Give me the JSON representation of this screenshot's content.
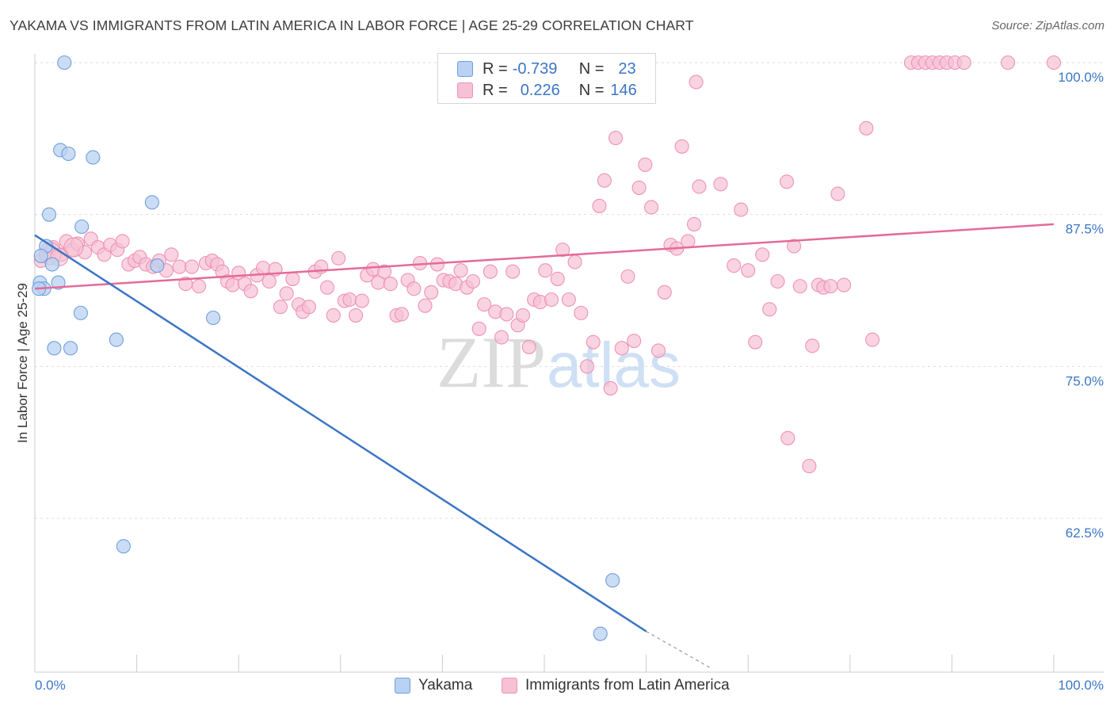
{
  "title": "YAKAMA VS IMMIGRANTS FROM LATIN AMERICA IN LABOR FORCE | AGE 25-29 CORRELATION CHART",
  "source": "Source: ZipAtlas.com",
  "watermark": {
    "zip": "ZIP",
    "atlas": "atlas"
  },
  "colors": {
    "blue": "#3b76c6",
    "blue_fill": "#b9d1f2",
    "blue_stroke": "#6f9fdc",
    "pink": "#e46b98",
    "pink_fill": "#f6c1d4",
    "pink_stroke": "#ee93b5"
  },
  "legend": {
    "rows": [
      {
        "r_label": "R =",
        "r_value": "-0.739",
        "n_label": "N =",
        "n_value": "23"
      },
      {
        "r_label": "R =",
        "r_value": "0.226",
        "n_label": "N =",
        "n_value": "146"
      }
    ]
  },
  "chart_data": {
    "type": "scatter",
    "title": "YAKAMA VS IMMIGRANTS FROM LATIN AMERICA IN LABOR FORCE | AGE 25-29 CORRELATION CHART",
    "xlabel": "",
    "ylabel": "In Labor Force | Age 25-29",
    "xlim": [
      0,
      100
    ],
    "ylim": [
      50.5,
      101
    ],
    "x_tick_labels": [
      "0.0%",
      "100.0%"
    ],
    "y_ticks": [
      {
        "value": 100,
        "label": "100.0%"
      },
      {
        "value": 87.5,
        "label": "87.5%"
      },
      {
        "value": 75,
        "label": "75.0%"
      },
      {
        "value": 62.5,
        "label": "62.5%"
      }
    ],
    "grid": true,
    "legend_position": "bottom",
    "series": [
      {
        "name": "Yakama",
        "color": "#6f9fdc",
        "fill": "#b9d1f2",
        "trend": {
          "x": [
            0,
            60
          ],
          "y": [
            85.8,
            53.2
          ],
          "dashed_to_x": 66.5,
          "dashed_to_y": 50.1
        },
        "points": [
          [
            2.9,
            100
          ],
          [
            2.5,
            92.8
          ],
          [
            3.3,
            92.5
          ],
          [
            5.7,
            92.2
          ],
          [
            1.4,
            87.5
          ],
          [
            11.5,
            88.5
          ],
          [
            4.6,
            86.5
          ],
          [
            1.1,
            84.9
          ],
          [
            0.6,
            84.1
          ],
          [
            1.7,
            83.4
          ],
          [
            0.5,
            81.9
          ],
          [
            0.9,
            81.4
          ],
          [
            2.3,
            81.9
          ],
          [
            0.4,
            81.4
          ],
          [
            4.5,
            79.4
          ],
          [
            17.5,
            79.0
          ],
          [
            8.0,
            77.2
          ],
          [
            1.9,
            76.5
          ],
          [
            3.5,
            76.5
          ],
          [
            12.0,
            83.3
          ],
          [
            8.7,
            60.2
          ],
          [
            56.7,
            57.4
          ],
          [
            55.5,
            53.0
          ]
        ]
      },
      {
        "name": "Immigrants from Latin America",
        "color": "#ee93b5",
        "fill": "#f6c1d4",
        "trend": {
          "x": [
            0,
            100
          ],
          "y": [
            81.4,
            86.7
          ]
        },
        "points": [
          [
            0.6,
            83.7
          ],
          [
            1.2,
            84.3
          ],
          [
            1.8,
            84.8
          ],
          [
            2.6,
            84.2
          ],
          [
            3.1,
            85.3
          ],
          [
            3.7,
            84.6
          ],
          [
            4.2,
            85.1
          ],
          [
            4.9,
            84.4
          ],
          [
            5.5,
            85.5
          ],
          [
            6.2,
            84.8
          ],
          [
            6.8,
            84.2
          ],
          [
            7.4,
            85.0
          ],
          [
            8.1,
            84.6
          ],
          [
            8.6,
            85.3
          ],
          [
            9.2,
            83.4
          ],
          [
            9.8,
            83.7
          ],
          [
            10.3,
            84.0
          ],
          [
            10.9,
            83.4
          ],
          [
            11.6,
            83.2
          ],
          [
            12.2,
            83.7
          ],
          [
            12.9,
            82.9
          ],
          [
            13.4,
            84.2
          ],
          [
            14.2,
            83.2
          ],
          [
            14.8,
            81.8
          ],
          [
            15.4,
            83.2
          ],
          [
            16.1,
            81.6
          ],
          [
            16.8,
            83.5
          ],
          [
            17.4,
            83.7
          ],
          [
            17.9,
            83.4
          ],
          [
            18.4,
            82.8
          ],
          [
            18.9,
            82.0
          ],
          [
            19.4,
            81.7
          ],
          [
            20.0,
            82.7
          ],
          [
            20.6,
            81.8
          ],
          [
            21.2,
            81.2
          ],
          [
            21.8,
            82.5
          ],
          [
            22.4,
            83.1
          ],
          [
            23.0,
            82.0
          ],
          [
            23.6,
            83.0
          ],
          [
            24.1,
            79.9
          ],
          [
            24.7,
            81.0
          ],
          [
            25.3,
            82.2
          ],
          [
            25.9,
            80.1
          ],
          [
            26.3,
            79.5
          ],
          [
            26.9,
            79.9
          ],
          [
            27.5,
            82.8
          ],
          [
            28.1,
            83.2
          ],
          [
            28.7,
            81.5
          ],
          [
            29.3,
            79.2
          ],
          [
            29.8,
            83.9
          ],
          [
            30.4,
            80.4
          ],
          [
            30.9,
            80.5
          ],
          [
            31.5,
            79.2
          ],
          [
            32.1,
            80.4
          ],
          [
            32.6,
            82.5
          ],
          [
            33.2,
            83.0
          ],
          [
            33.7,
            81.9
          ],
          [
            34.3,
            82.8
          ],
          [
            34.9,
            81.8
          ],
          [
            35.5,
            79.2
          ],
          [
            36.0,
            79.3
          ],
          [
            36.6,
            82.1
          ],
          [
            37.2,
            81.4
          ],
          [
            37.8,
            83.5
          ],
          [
            38.3,
            80.0
          ],
          [
            38.9,
            81.1
          ],
          [
            39.5,
            83.4
          ],
          [
            40.1,
            82.1
          ],
          [
            40.7,
            82.0
          ],
          [
            41.3,
            81.8
          ],
          [
            41.8,
            82.9
          ],
          [
            42.4,
            81.5
          ],
          [
            43.0,
            82.0
          ],
          [
            43.6,
            78.1
          ],
          [
            44.1,
            80.1
          ],
          [
            44.7,
            82.8
          ],
          [
            45.2,
            79.5
          ],
          [
            45.8,
            77.4
          ],
          [
            46.3,
            79.3
          ],
          [
            46.9,
            82.8
          ],
          [
            47.4,
            78.4
          ],
          [
            47.9,
            79.2
          ],
          [
            48.5,
            76.6
          ],
          [
            49.0,
            80.5
          ],
          [
            49.6,
            80.3
          ],
          [
            50.1,
            82.9
          ],
          [
            50.7,
            80.5
          ],
          [
            51.3,
            82.2
          ],
          [
            51.8,
            84.6
          ],
          [
            52.4,
            80.5
          ],
          [
            53.0,
            83.6
          ],
          [
            53.6,
            79.4
          ],
          [
            54.2,
            75.0
          ],
          [
            54.8,
            77.0
          ],
          [
            55.4,
            88.2
          ],
          [
            55.9,
            90.3
          ],
          [
            56.5,
            73.2
          ],
          [
            57.0,
            93.8
          ],
          [
            57.6,
            76.5
          ],
          [
            58.2,
            82.4
          ],
          [
            58.8,
            77.1
          ],
          [
            59.3,
            89.7
          ],
          [
            59.9,
            91.6
          ],
          [
            60.5,
            88.1
          ],
          [
            61.2,
            76.3
          ],
          [
            61.8,
            81.1
          ],
          [
            62.4,
            85.0
          ],
          [
            63.0,
            84.7
          ],
          [
            63.5,
            93.1
          ],
          [
            64.1,
            85.3
          ],
          [
            64.7,
            86.7
          ],
          [
            65.2,
            89.8
          ],
          [
            64.9,
            98.4
          ],
          [
            67.3,
            90.0
          ],
          [
            68.6,
            83.3
          ],
          [
            69.3,
            87.9
          ],
          [
            70.0,
            82.9
          ],
          [
            70.7,
            77.0
          ],
          [
            71.4,
            84.2
          ],
          [
            72.1,
            79.7
          ],
          [
            72.9,
            82.0
          ],
          [
            73.8,
            90.2
          ],
          [
            73.9,
            69.1
          ],
          [
            74.5,
            84.9
          ],
          [
            75.1,
            81.6
          ],
          [
            76.0,
            66.8
          ],
          [
            76.3,
            76.7
          ],
          [
            76.9,
            81.7
          ],
          [
            77.4,
            81.5
          ],
          [
            78.1,
            81.6
          ],
          [
            78.8,
            89.2
          ],
          [
            79.4,
            81.7
          ],
          [
            81.6,
            94.6
          ],
          [
            82.2,
            77.2
          ],
          [
            86.0,
            100
          ],
          [
            86.7,
            100
          ],
          [
            87.4,
            100
          ],
          [
            88.1,
            100
          ],
          [
            88.8,
            100
          ],
          [
            89.5,
            100
          ],
          [
            90.3,
            100
          ],
          [
            91.2,
            100
          ],
          [
            95.5,
            100
          ],
          [
            100.0,
            100
          ]
        ]
      }
    ]
  },
  "bottom_legend": [
    {
      "label": "Yakama"
    },
    {
      "label": "Immigrants from Latin America"
    }
  ]
}
